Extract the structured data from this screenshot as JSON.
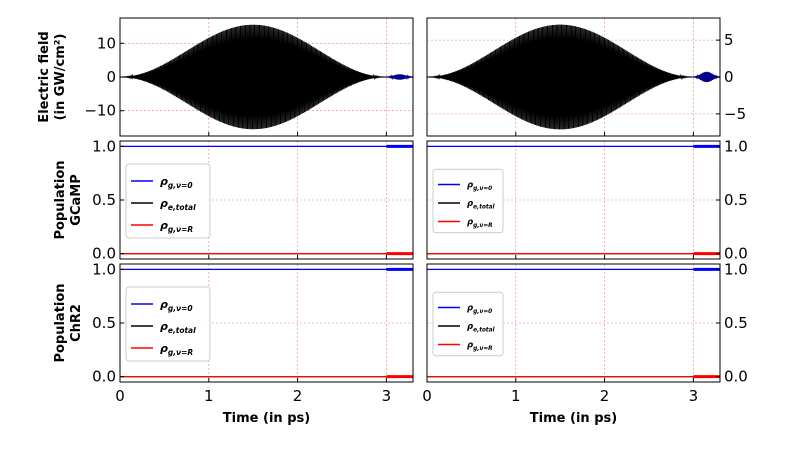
{
  "chart_data": {
    "type": "line",
    "x_unit_label": "Time (in ps)",
    "xlim": [
      0,
      3.3
    ],
    "x_ticks": [
      "0",
      "1",
      "2",
      "3"
    ],
    "rows": [
      {
        "id": "field",
        "ylabel_lines": [
          "Electric field",
          "(in GW/cm²)"
        ],
        "panels": [
          {
            "ylim": [
              -17.5,
              17.5
            ],
            "y_ticks": [
              -10,
              0,
              10
            ],
            "y_tick_labels": [
              "−10",
              "0",
              "10"
            ],
            "tick_side": "left",
            "envelope": {
              "peak": 15.5,
              "center": 1.5,
              "end": 3.0
            },
            "probe": {
              "start": 3.0,
              "end": 3.3,
              "amplitude": 0.8,
              "color": "#00008b"
            }
          },
          {
            "ylim": [
              -8,
              8
            ],
            "y_ticks": [
              -5,
              0,
              5
            ],
            "y_tick_labels": [
              "−5",
              "0",
              "5"
            ],
            "tick_side": "right",
            "envelope": {
              "peak": 7.1,
              "center": 1.5,
              "end": 3.0
            },
            "probe": {
              "start": 3.0,
              "end": 3.3,
              "amplitude": 0.7,
              "color": "#00008b"
            }
          }
        ]
      },
      {
        "id": "gcamp",
        "ylabel_lines": [
          "Population",
          "GCaMP"
        ],
        "panels": [
          {
            "ylim": [
              -0.05,
              1.05
            ],
            "y_ticks": [
              0,
              0.5,
              1.0
            ],
            "y_tick_labels": [
              "0.0",
              "0.5",
              "1.0"
            ],
            "tick_side": "left",
            "legend_size": "large"
          },
          {
            "ylim": [
              -0.05,
              1.05
            ],
            "y_ticks": [
              0,
              0.5,
              1.0
            ],
            "y_tick_labels": [
              "0.0",
              "0.5",
              "1.0"
            ],
            "tick_side": "right",
            "legend_size": "small"
          }
        ]
      },
      {
        "id": "chr2",
        "ylabel_lines": [
          "Population",
          "ChR2"
        ],
        "panels": [
          {
            "ylim": [
              -0.05,
              1.05
            ],
            "y_ticks": [
              0,
              0.5,
              1.0
            ],
            "y_tick_labels": [
              "0.0",
              "0.5",
              "1.0"
            ],
            "tick_side": "left",
            "legend_size": "large"
          },
          {
            "ylim": [
              -0.05,
              1.05
            ],
            "y_ticks": [
              0,
              0.5,
              1.0
            ],
            "y_tick_labels": [
              "0.0",
              "0.5",
              "1.0"
            ],
            "tick_side": "right",
            "legend_size": "small"
          }
        ]
      }
    ],
    "population_series": [
      {
        "key": "g0",
        "base": "ρ",
        "sub": "g,ν=0",
        "color": "#0000ff",
        "value": 1.0
      },
      {
        "key": "etot",
        "base": "ρ",
        "sub": "e,total",
        "color": "#000000",
        "value": 0.0
      },
      {
        "key": "gR",
        "base": "ρ",
        "sub": "g,ν=R",
        "color": "#ff0000",
        "value": 0.0
      }
    ],
    "grid": true,
    "grid_color": "#e88080",
    "legend_position": "center-left"
  }
}
